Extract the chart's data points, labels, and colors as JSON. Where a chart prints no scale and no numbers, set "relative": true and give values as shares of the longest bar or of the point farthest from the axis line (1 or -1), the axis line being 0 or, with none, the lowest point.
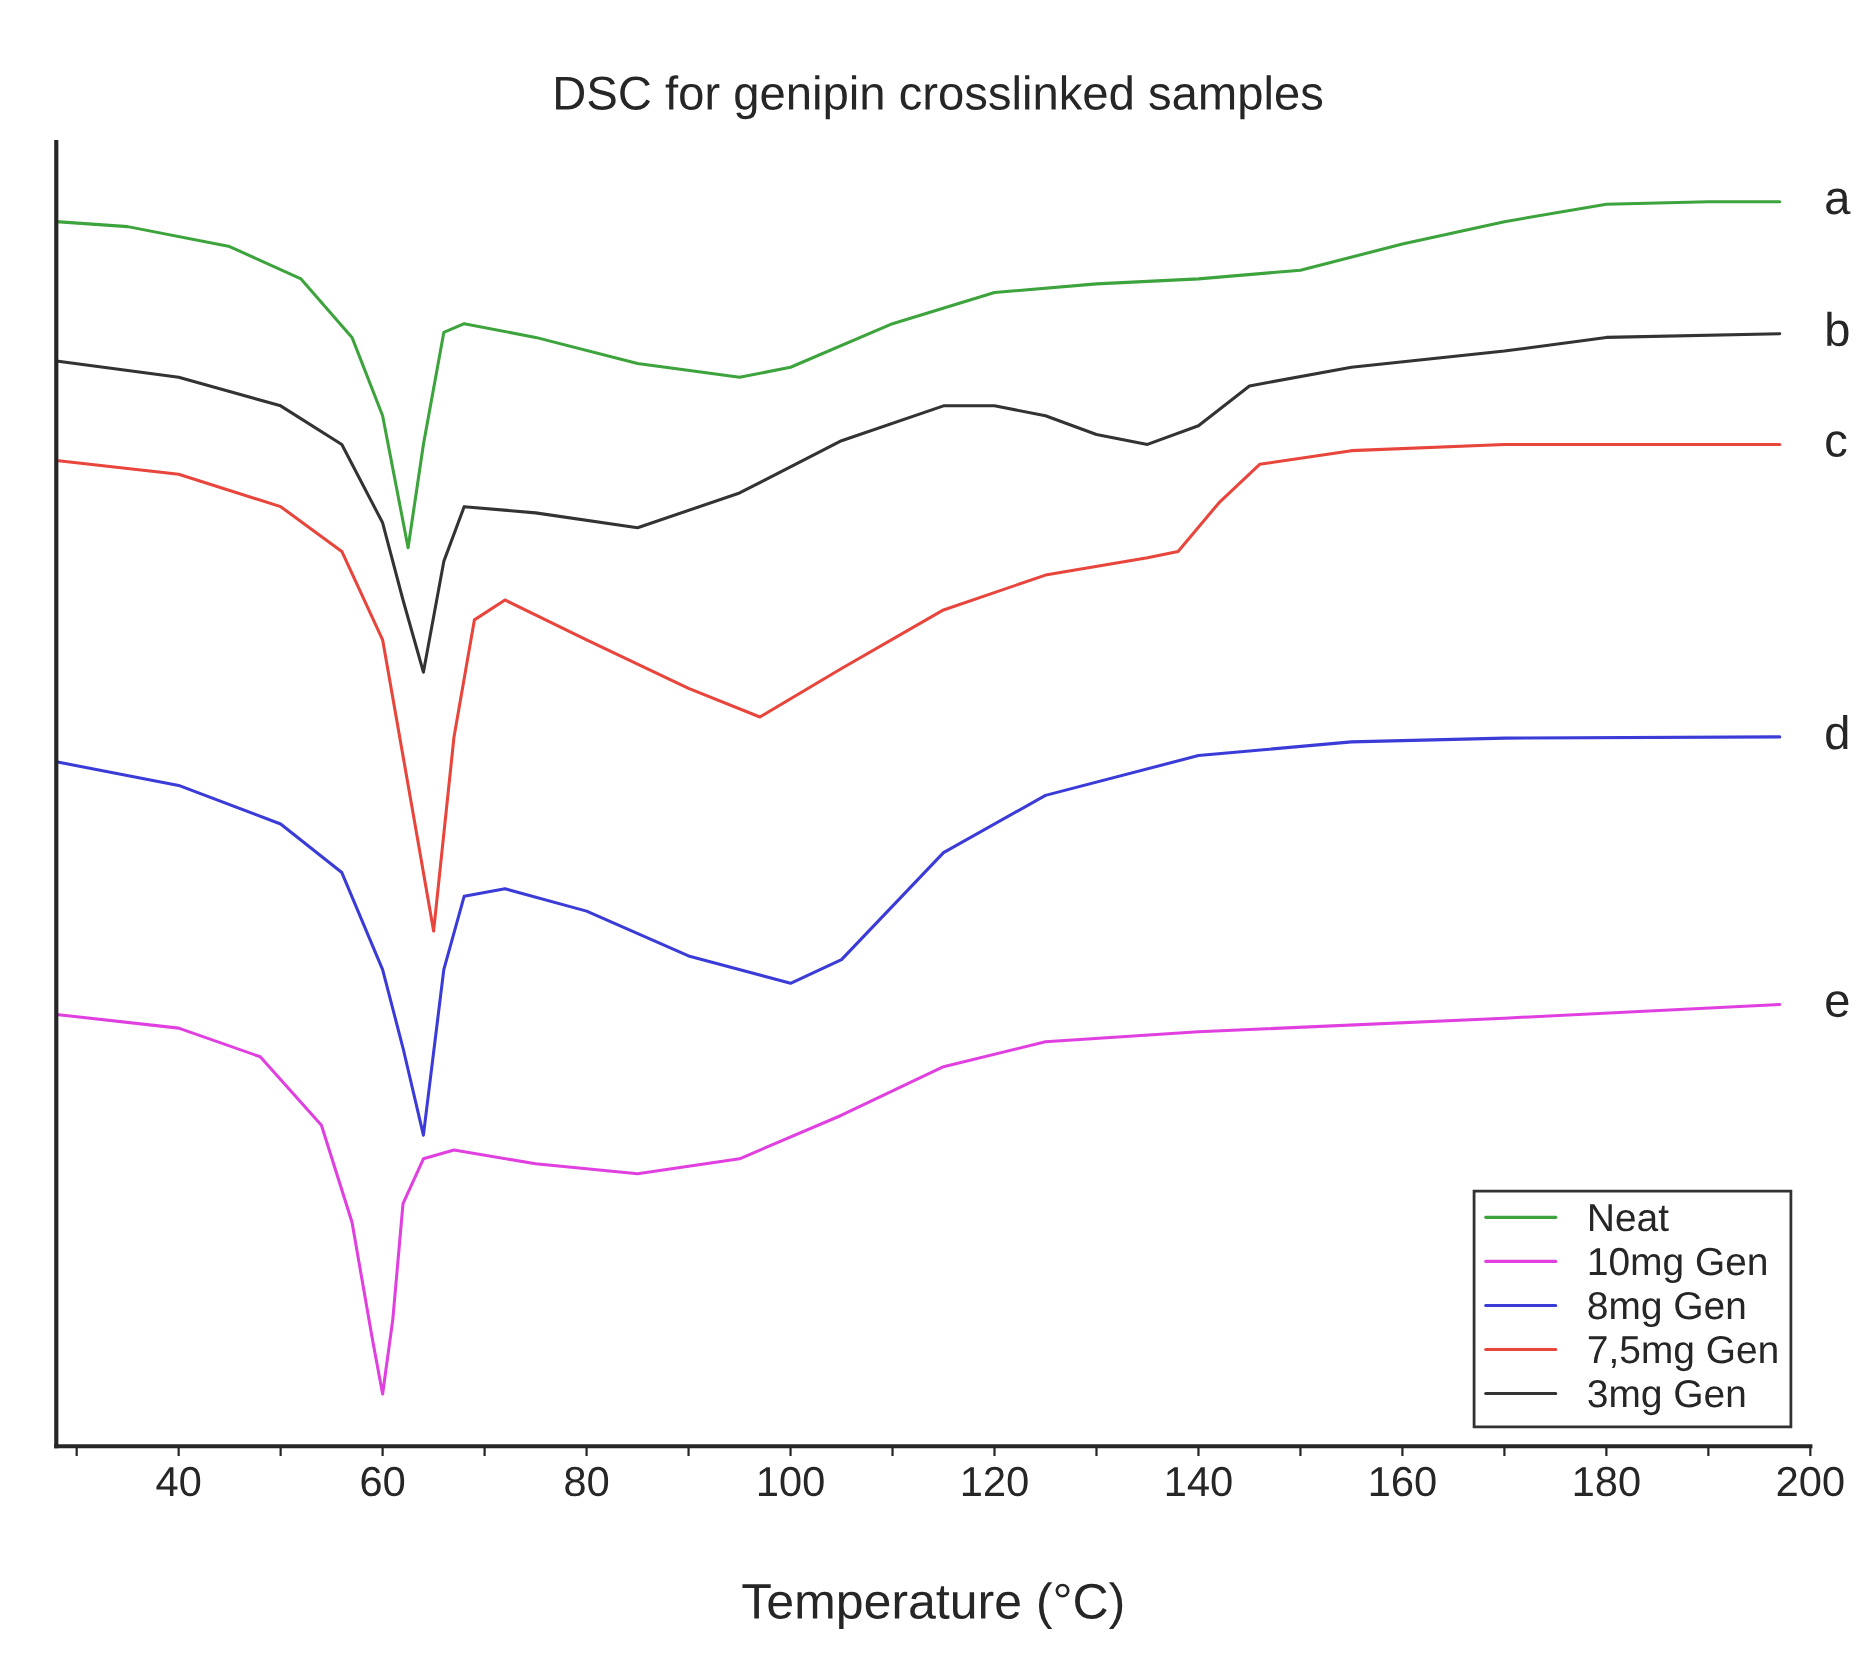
{
  "chart_data": {
    "type": "line",
    "title": "DSC for genipin crosslinked samples",
    "xlabel": "Temperature (°C)",
    "relative": true,
    "xlim": [
      28,
      200
    ],
    "xticks": [
      {
        "value": 30,
        "label": null
      },
      40,
      {
        "value": 50,
        "label": null
      },
      60,
      {
        "value": 70,
        "label": null
      },
      80,
      {
        "value": 90,
        "label": null
      },
      100,
      {
        "value": 110,
        "label": null
      },
      120,
      {
        "value": 130,
        "label": null
      },
      140,
      {
        "value": 150,
        "label": null
      },
      160,
      {
        "value": 170,
        "label": null
      },
      180,
      {
        "value": 190,
        "label": null
      },
      200
    ],
    "grid": false,
    "legend": "bottom right",
    "marker": "none",
    "line_style": "solid",
    "series": [
      {
        "name": "Neat",
        "color": "#3da33d",
        "x": [
          28,
          35,
          45,
          52,
          57,
          60,
          62.5,
          64,
          66,
          68,
          75,
          85,
          95,
          100,
          110,
          120,
          130,
          140,
          150,
          160,
          170,
          180,
          190,
          197
        ],
        "values": [
          0.984,
          0.98,
          0.964,
          0.938,
          0.891,
          0.828,
          0.722,
          0.805,
          0.895,
          0.902,
          0.891,
          0.87,
          0.859,
          0.867,
          0.902,
          0.927,
          0.934,
          0.938,
          0.945,
          0.966,
          0.984,
          0.998,
          1.0,
          1.0
        ]
      },
      {
        "name": "10mg Gen",
        "color": "#e040e0",
        "x": [
          28,
          40,
          48,
          54,
          57,
          59,
          60,
          61,
          62,
          64,
          67,
          75,
          85,
          95,
          105,
          115,
          125,
          140,
          170,
          197
        ],
        "values": [
          0.347,
          0.336,
          0.313,
          0.258,
          0.18,
          0.086,
          0.042,
          0.102,
          0.195,
          0.231,
          0.238,
          0.227,
          0.219,
          0.231,
          0.266,
          0.305,
          0.325,
          0.333,
          0.344,
          0.355
        ]
      },
      {
        "name": "8mg Gen",
        "color": "#3b3bd8",
        "x": [
          28,
          40,
          50,
          56,
          60,
          62,
          64,
          66,
          68,
          72,
          80,
          90,
          100,
          105,
          115,
          125,
          140,
          155,
          170,
          197
        ],
        "values": [
          0.55,
          0.531,
          0.5,
          0.461,
          0.383,
          0.32,
          0.25,
          0.383,
          0.442,
          0.448,
          0.43,
          0.394,
          0.372,
          0.391,
          0.477,
          0.523,
          0.555,
          0.566,
          0.569,
          0.57
        ]
      },
      {
        "name": "7,5mg Gen",
        "color": "#e8453c",
        "x": [
          28,
          40,
          50,
          56,
          60,
          63,
          65,
          67,
          69,
          72,
          80,
          90,
          97,
          105,
          115,
          125,
          135,
          138,
          142,
          146,
          155,
          170,
          197
        ],
        "values": [
          0.792,
          0.781,
          0.755,
          0.719,
          0.648,
          0.508,
          0.414,
          0.57,
          0.664,
          0.68,
          0.648,
          0.609,
          0.586,
          0.625,
          0.672,
          0.7,
          0.714,
          0.719,
          0.758,
          0.789,
          0.8,
          0.805,
          0.805
        ]
      },
      {
        "name": "3mg Gen",
        "color": "#333333",
        "x": [
          28,
          40,
          50,
          56,
          60,
          62,
          64,
          66,
          68,
          75,
          85,
          95,
          105,
          115,
          120,
          125,
          130,
          135,
          140,
          145,
          155,
          170,
          180,
          197
        ],
        "values": [
          0.872,
          0.859,
          0.836,
          0.805,
          0.742,
          0.68,
          0.622,
          0.711,
          0.755,
          0.75,
          0.738,
          0.766,
          0.808,
          0.836,
          0.836,
          0.828,
          0.813,
          0.805,
          0.82,
          0.852,
          0.867,
          0.88,
          0.891,
          0.894
        ]
      }
    ],
    "annotations": [
      "a",
      "b",
      "c",
      "d",
      "e"
    ]
  }
}
